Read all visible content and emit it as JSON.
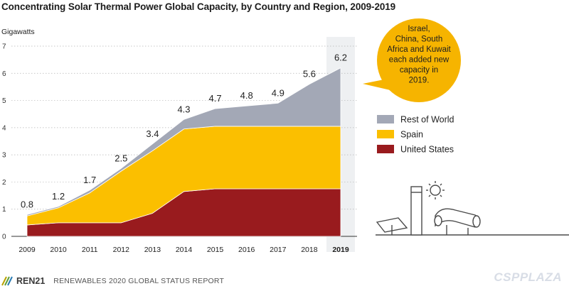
{
  "header": {
    "title": "Concentrating Solar Thermal Power Global Capacity, by Country and Region, 2009-2019"
  },
  "chart_data": {
    "type": "area",
    "stacked": true,
    "title": "Concentrating Solar Thermal Power Global Capacity, by Country and Region, 2009-2019",
    "ylabel": "Gigawatts",
    "xlabel": "",
    "ylim": [
      0,
      7
    ],
    "yticks": [
      "0",
      "1",
      "2",
      "3",
      "4",
      "5",
      "6",
      "7"
    ],
    "categories": [
      "2009",
      "2010",
      "2011",
      "2012",
      "2013",
      "2014",
      "2015",
      "2016",
      "2017",
      "2018",
      "2019"
    ],
    "highlight_category": "2019",
    "totals_labels": [
      "0.8",
      "1.2",
      "1.7",
      "2.5",
      "3.4",
      "4.3",
      "4.7",
      "4.8",
      "4.9",
      "5.6",
      "6.2"
    ],
    "series": [
      {
        "name": "United States",
        "color": "#991b1e",
        "values": [
          0.42,
          0.5,
          0.5,
          0.5,
          0.85,
          1.65,
          1.75,
          1.75,
          1.75,
          1.75,
          1.75
        ]
      },
      {
        "name": "Spain",
        "color": "#fbbf00",
        "values": [
          0.33,
          0.55,
          1.1,
          1.9,
          2.3,
          2.3,
          2.3,
          2.3,
          2.3,
          2.3,
          2.3
        ]
      },
      {
        "name": "Rest of World",
        "color": "#a3a8b6",
        "values": [
          0.05,
          0.05,
          0.1,
          0.1,
          0.25,
          0.35,
          0.65,
          0.75,
          0.85,
          1.55,
          2.15
        ]
      }
    ],
    "legend_order": [
      "Rest of World",
      "Spain",
      "United States"
    ],
    "legend_position": "right",
    "annotation": {
      "lines": [
        "Israel,",
        "China, South",
        "Africa and Kuwait",
        "each added new",
        "capacity in",
        "2019."
      ]
    }
  },
  "footer": {
    "brand": "REN21",
    "report": "RENEWABLES 2020 GLOBAL STATUS REPORT",
    "watermark": "CSPPLAZA"
  },
  "colors": {
    "accent": "#f6b400",
    "bubble": "#f6b400"
  }
}
